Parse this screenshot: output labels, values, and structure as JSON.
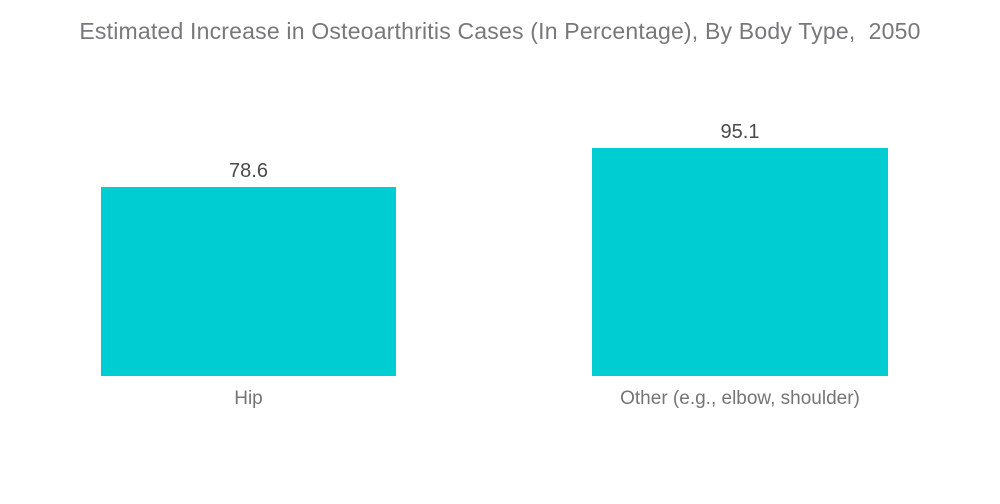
{
  "title": "Estimated Increase in Osteoarthritis Cases (In Percentage), By Body Type,  2050",
  "colors": {
    "background": "#FFFFFF",
    "bar": "#00CDD1",
    "title_text": "#77787B",
    "value_text": "#4A4A4A",
    "category_text": "#757575"
  },
  "chart_data": {
    "type": "bar",
    "title": "Estimated Increase in Osteoarthritis Cases (In Percentage), By Body Type,  2050",
    "categories": [
      "Hip",
      "Other (e.g., elbow, shoulder)"
    ],
    "values": [
      78.6,
      95.1
    ],
    "value_labels": [
      "78.6",
      "95.1"
    ],
    "xlabel": "",
    "ylabel": "",
    "ylim": [
      0,
      100
    ],
    "grid": false,
    "legend": false,
    "axes_visible": false,
    "bar_color": "#00CDD1",
    "orientation": "vertical"
  }
}
